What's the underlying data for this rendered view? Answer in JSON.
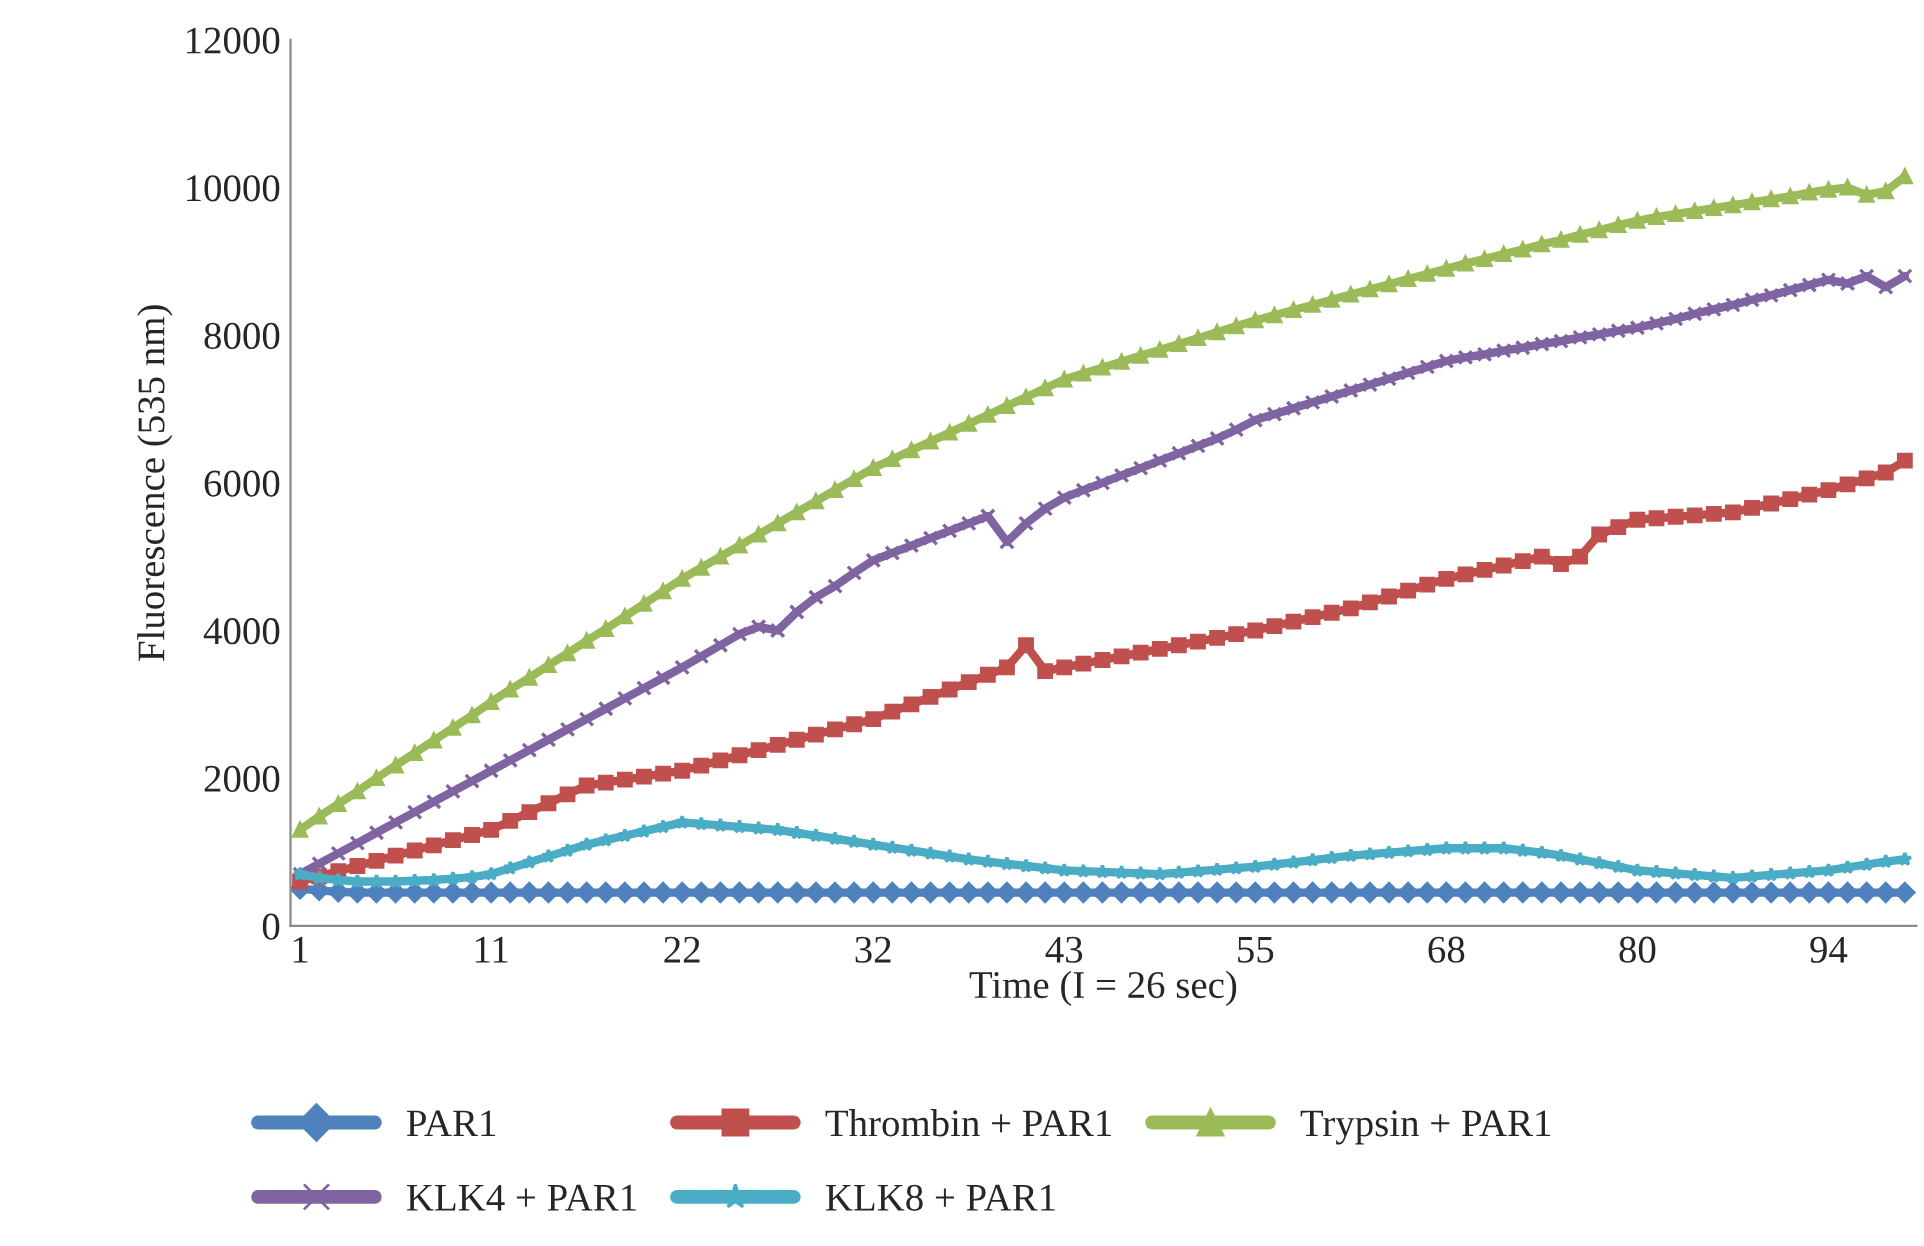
{
  "chart_data": {
    "type": "line",
    "xlabel": "Time (I = 26 sec)",
    "ylabel": "Fluorescence (535 nm)",
    "categories": [
      "1",
      null,
      null,
      null,
      null,
      null,
      null,
      null,
      null,
      null,
      "11",
      null,
      null,
      null,
      null,
      null,
      null,
      null,
      null,
      null,
      "22",
      null,
      null,
      null,
      null,
      null,
      null,
      null,
      null,
      null,
      "32",
      null,
      null,
      null,
      null,
      null,
      null,
      null,
      null,
      null,
      "43",
      null,
      null,
      null,
      null,
      null,
      null,
      null,
      null,
      null,
      "55",
      null,
      null,
      null,
      null,
      null,
      null,
      null,
      null,
      null,
      "68",
      null,
      null,
      null,
      null,
      null,
      null,
      null,
      null,
      null,
      "80",
      null,
      null,
      null,
      null,
      null,
      null,
      null,
      null,
      null,
      "94",
      null,
      null,
      null,
      null
    ],
    "ylim": [
      0,
      12000
    ],
    "yticks": [
      0,
      2000,
      4000,
      6000,
      8000,
      10000,
      12000
    ],
    "grid": false,
    "legend": "bottom",
    "series": [
      {
        "name": "PAR1",
        "color": "#4f81bd",
        "marker": "diamond",
        "values": [
          500,
          480,
          460,
          450,
          450,
          450,
          450,
          450,
          450,
          450,
          450,
          450,
          450,
          450,
          450,
          450,
          450,
          450,
          450,
          450,
          450,
          450,
          450,
          450,
          450,
          450,
          450,
          450,
          450,
          450,
          450,
          450,
          450,
          450,
          450,
          450,
          450,
          450,
          450,
          450,
          450,
          450,
          450,
          450,
          450,
          450,
          450,
          450,
          450,
          450,
          450,
          450,
          450,
          450,
          450,
          450,
          450,
          450,
          450,
          450,
          450,
          450,
          450,
          450,
          450,
          450,
          450,
          450,
          450,
          450,
          450,
          450,
          450,
          450,
          450,
          450,
          450,
          450,
          450,
          450,
          450,
          450,
          450,
          450,
          450
        ]
      },
      {
        "name": "Thrombin + PAR1",
        "color": "#c0504d",
        "marker": "square",
        "values": [
          600,
          670,
          740,
          810,
          880,
          950,
          1020,
          1090,
          1160,
          1230,
          1300,
          1420,
          1540,
          1660,
          1780,
          1900,
          1940,
          1980,
          2020,
          2060,
          2100,
          2170,
          2240,
          2310,
          2380,
          2450,
          2520,
          2590,
          2660,
          2730,
          2800,
          2900,
          3000,
          3100,
          3200,
          3300,
          3400,
          3500,
          3800,
          3450,
          3500,
          3550,
          3600,
          3650,
          3700,
          3750,
          3800,
          3850,
          3900,
          3950,
          4000,
          4060,
          4120,
          4180,
          4240,
          4300,
          4380,
          4460,
          4540,
          4620,
          4700,
          4760,
          4820,
          4880,
          4940,
          5000,
          4900,
          5000,
          5300,
          5400,
          5500,
          5520,
          5540,
          5560,
          5580,
          5600,
          5660,
          5720,
          5780,
          5840,
          5900,
          5980,
          6060,
          6140,
          6300
        ]
      },
      {
        "name": "Trypsin + PAR1",
        "color": "#9bbb59",
        "marker": "triangle",
        "values": [
          1300,
          1480,
          1650,
          1820,
          2000,
          2170,
          2340,
          2510,
          2680,
          2850,
          3030,
          3200,
          3360,
          3530,
          3690,
          3860,
          4020,
          4190,
          4360,
          4530,
          4700,
          4850,
          5000,
          5150,
          5300,
          5450,
          5600,
          5750,
          5900,
          6050,
          6200,
          6320,
          6440,
          6560,
          6680,
          6800,
          6920,
          7040,
          7160,
          7280,
          7400,
          7480,
          7560,
          7640,
          7720,
          7800,
          7880,
          7960,
          8040,
          8120,
          8200,
          8270,
          8340,
          8410,
          8480,
          8550,
          8620,
          8690,
          8760,
          8830,
          8900,
          8970,
          9030,
          9100,
          9160,
          9230,
          9290,
          9360,
          9420,
          9490,
          9550,
          9600,
          9640,
          9680,
          9720,
          9760,
          9800,
          9840,
          9880,
          9930,
          9970,
          10000,
          9900,
          9950,
          10150
        ]
      },
      {
        "name": "KLK4 + PAR1",
        "color": "#8064a2",
        "marker": "cross",
        "values": [
          700,
          840,
          980,
          1120,
          1260,
          1400,
          1540,
          1680,
          1820,
          1960,
          2100,
          2240,
          2380,
          2520,
          2660,
          2800,
          2940,
          3080,
          3220,
          3360,
          3500,
          3650,
          3800,
          3950,
          4050,
          4000,
          4250,
          4450,
          4600,
          4780,
          4950,
          5050,
          5150,
          5250,
          5350,
          5450,
          5550,
          5200,
          5450,
          5650,
          5800,
          5900,
          6000,
          6100,
          6200,
          6300,
          6400,
          6500,
          6600,
          6720,
          6850,
          6930,
          7010,
          7090,
          7170,
          7250,
          7330,
          7410,
          7490,
          7570,
          7650,
          7700,
          7740,
          7790,
          7830,
          7880,
          7920,
          7970,
          8010,
          8060,
          8100,
          8160,
          8220,
          8290,
          8350,
          8410,
          8480,
          8540,
          8610,
          8680,
          8750,
          8700,
          8800,
          8650,
          8800
        ]
      },
      {
        "name": "KLK8 + PAR1",
        "color": "#4bacc6",
        "marker": "star",
        "values": [
          700,
          650,
          620,
          600,
          600,
          600,
          610,
          620,
          640,
          660,
          700,
          780,
          860,
          940,
          1020,
          1100,
          1160,
          1220,
          1280,
          1340,
          1400,
          1380,
          1360,
          1340,
          1320,
          1300,
          1260,
          1220,
          1180,
          1140,
          1100,
          1060,
          1020,
          980,
          940,
          900,
          870,
          840,
          810,
          780,
          750,
          740,
          730,
          720,
          710,
          700,
          720,
          740,
          760,
          780,
          800,
          830,
          860,
          890,
          920,
          950,
          970,
          990,
          1010,
          1030,
          1050,
          1050,
          1050,
          1050,
          1020,
          990,
          950,
          900,
          850,
          800,
          750,
          730,
          710,
          690,
          670,
          650,
          670,
          690,
          710,
          730,
          750,
          790,
          830,
          870,
          900
        ]
      }
    ]
  }
}
